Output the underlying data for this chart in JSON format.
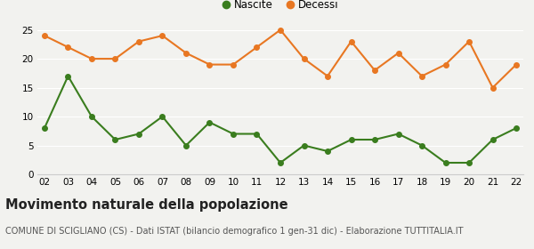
{
  "years": [
    "02",
    "03",
    "04",
    "05",
    "06",
    "07",
    "08",
    "09",
    "10",
    "11",
    "12",
    "13",
    "14",
    "15",
    "16",
    "17",
    "18",
    "19",
    "20",
    "21",
    "22"
  ],
  "nascite": [
    8,
    17,
    10,
    6,
    7,
    10,
    5,
    9,
    7,
    7,
    2,
    5,
    4,
    6,
    6,
    7,
    5,
    2,
    2,
    6,
    8
  ],
  "decessi": [
    24,
    22,
    20,
    20,
    23,
    24,
    21,
    19,
    19,
    22,
    25,
    20,
    17,
    23,
    18,
    21,
    17,
    19,
    23,
    15,
    19
  ],
  "nascite_color": "#3a7d1e",
  "decessi_color": "#e87722",
  "title": "Movimento naturale della popolazione",
  "subtitle": "COMUNE DI SCIGLIANO (CS) - Dati ISTAT (bilancio demografico 1 gen-31 dic) - Elaborazione TUTTITALIA.IT",
  "ylim": [
    0,
    25
  ],
  "yticks": [
    0,
    5,
    10,
    15,
    20,
    25
  ],
  "background_color": "#f2f2ef",
  "legend_nascite": "Nascite",
  "legend_decessi": "Decessi",
  "title_fontsize": 10.5,
  "subtitle_fontsize": 7.0,
  "marker_size": 4,
  "line_width": 1.5,
  "tick_fontsize": 7.5
}
